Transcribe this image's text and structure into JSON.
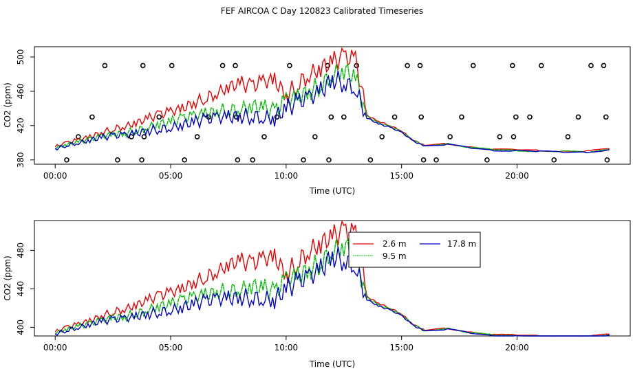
{
  "title": "FEF AIRCOA C  Day 120823  Calibrated Timeseries",
  "colors": {
    "s2_6": "#ee0000",
    "s9_5": "#00cc00",
    "s17_8": "#0000cc",
    "axis": "#000000"
  },
  "chart_data": [
    {
      "type": "line",
      "xlabel": "Time (UTC)",
      "ylabel": "CO2 (ppm)",
      "xlim": [
        -0.9,
        24.9
      ],
      "ylim": [
        375,
        512
      ],
      "xticks": [
        0,
        5,
        10,
        15,
        20
      ],
      "xtick_labels": [
        "00:00",
        "05:00",
        "10:00",
        "15:00",
        "20:00"
      ],
      "yticks": [
        380,
        420,
        460,
        500
      ],
      "ytick_labels": [
        "380",
        "420",
        "460",
        "500"
      ],
      "series": [
        {
          "name": "2.6 m",
          "color": "#ee0000",
          "x": [
            0,
            0.5,
            1,
            1.5,
            2,
            2.5,
            3,
            3.5,
            4,
            4.5,
            5,
            5.5,
            6,
            6.5,
            7,
            7.5,
            8,
            8.5,
            9,
            9.5,
            10,
            10.5,
            11,
            11.5,
            12,
            12.5,
            13,
            13.5,
            14,
            14.5,
            15,
            15.5,
            16,
            17,
            18,
            19,
            20,
            21,
            22,
            23,
            24
          ],
          "y": [
            395,
            400,
            403,
            407,
            412,
            416,
            419,
            423,
            428,
            433,
            436,
            440,
            447,
            452,
            458,
            465,
            469,
            466,
            471,
            473,
            455,
            468,
            480,
            487,
            494,
            500,
            497,
            432,
            425,
            420,
            414,
            403,
            397,
            399,
            395,
            392,
            392,
            391,
            390,
            390,
            393
          ]
        },
        {
          "name": "9.5 m",
          "color": "#00bb00",
          "x": [
            0,
            0.5,
            1,
            1.5,
            2,
            2.5,
            3,
            3.5,
            4,
            4.5,
            5,
            5.5,
            6,
            6.5,
            7,
            7.5,
            8,
            8.5,
            9,
            9.5,
            10,
            10.5,
            11,
            11.5,
            12,
            12.5,
            13,
            13.5,
            14,
            14.5,
            15,
            15.5,
            16,
            17,
            18,
            19,
            20,
            21,
            22,
            23,
            24
          ],
          "y": [
            394,
            398,
            401,
            404,
            407,
            410,
            411,
            414,
            418,
            422,
            424,
            428,
            431,
            434,
            437,
            438,
            440,
            443,
            441,
            436,
            450,
            453,
            460,
            467,
            480,
            485,
            476,
            431,
            423,
            419,
            413,
            403,
            397,
            399,
            394,
            392,
            391,
            390,
            390,
            389,
            392
          ]
        },
        {
          "name": "17.8 m",
          "color": "#0000cc",
          "x": [
            0,
            0.5,
            1,
            1.5,
            2,
            2.5,
            3,
            3.5,
            4,
            4.5,
            5,
            5.5,
            6,
            6.5,
            7,
            7.5,
            8,
            8.5,
            9,
            9.5,
            10,
            10.5,
            11,
            11.5,
            12,
            12.5,
            13,
            13.5,
            14,
            14.5,
            15,
            15.5,
            16,
            17,
            18,
            19,
            20,
            21,
            22,
            23,
            24
          ],
          "y": [
            393,
            397,
            400,
            403,
            406,
            408,
            409,
            411,
            414,
            416,
            418,
            421,
            424,
            427,
            429,
            430,
            431,
            431,
            430,
            429,
            440,
            447,
            452,
            460,
            474,
            470,
            464,
            429,
            422,
            418,
            412,
            402,
            396,
            398,
            394,
            391,
            391,
            390,
            389,
            389,
            392
          ]
        }
      ],
      "markers_label": "o",
      "markers_x": [
        0.5,
        1.0,
        1.6,
        2.15,
        2.7,
        3.3,
        3.75,
        3.85,
        3.8,
        4.5,
        5.05,
        5.6,
        6.15,
        6.65,
        7.25,
        7.8,
        7.85,
        7.9,
        8.55,
        9.05,
        9.6,
        10.15,
        10.75,
        11.25,
        11.8,
        11.95,
        11.85,
        12.5,
        13.05,
        13.65,
        14.15,
        14.7,
        15.25,
        15.8,
        15.85,
        15.95,
        16.5,
        17.1,
        17.6,
        18.1,
        18.7,
        19.25,
        19.8,
        19.85,
        19.95,
        20.55,
        21.05,
        21.6,
        22.2,
        22.65,
        23.2,
        23.75,
        23.85,
        23.9
      ],
      "markers_y": [
        380,
        407,
        430,
        490,
        380,
        407,
        380,
        407,
        490,
        430,
        490,
        380,
        407,
        430,
        490,
        490,
        430,
        380,
        380,
        407,
        430,
        490,
        380,
        407,
        490,
        430,
        380,
        430,
        490,
        380,
        407,
        430,
        490,
        490,
        430,
        380,
        380,
        407,
        430,
        490,
        380,
        407,
        490,
        407,
        430,
        430,
        490,
        380,
        407,
        430,
        490,
        490,
        430,
        380
      ]
    },
    {
      "type": "line",
      "xlabel": "Time (UTC)",
      "ylabel": "CO2 (ppm)",
      "xlim": [
        -0.9,
        24.9
      ],
      "ylim": [
        391,
        511
      ],
      "xticks": [
        0,
        5,
        10,
        15,
        20
      ],
      "xtick_labels": [
        "00:00",
        "05:00",
        "10:00",
        "15:00",
        "20:00"
      ],
      "yticks": [
        400,
        440,
        480
      ],
      "ytick_labels": [
        "400",
        "440",
        "480"
      ],
      "legend": [
        "2.6 m",
        "9.5 m",
        "17.8 m"
      ],
      "series_ref": "same data as chart 1"
    }
  ]
}
